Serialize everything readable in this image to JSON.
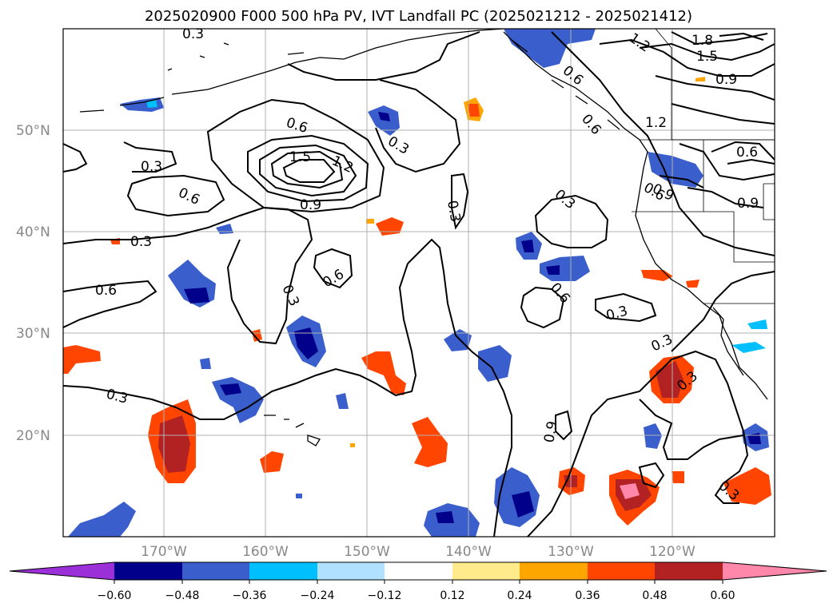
{
  "title": "2025020900 F000 500 hPa PV, IVT Landfall PC (2025021212 - 2025021412)",
  "lat_labels": [
    "50°N",
    "40°N",
    "30°N",
    "20°N"
  ],
  "lon_labels": [
    "170°W",
    "160°W",
    "150°W",
    "140°W",
    "130°W",
    "120°W"
  ],
  "contour_labels": [
    "0.3",
    "0.6",
    "1.5",
    "1.2",
    "0.9",
    "0.3",
    "0.6",
    "0.3",
    "0.3",
    "0.6",
    "0.3",
    "0.6",
    "0.3",
    "0.3",
    "0.6",
    "0.9",
    "0.3",
    "0.6",
    "0.3",
    "0.6",
    "0.3",
    "0.3",
    "0.3",
    "1.2",
    "1.8",
    "1.5",
    "0.9",
    "1.2",
    "0.6",
    "0.9",
    "0.6",
    "0.9",
    "0.3",
    "0.3"
  ],
  "colorbar": {
    "colors": [
      "#9b30d8",
      "#00008b",
      "#3a5fcd",
      "#00bfff",
      "#b0e2ff",
      "#ffffff",
      "#ffeb8c",
      "#ffa500",
      "#ff4500",
      "#b22222",
      "#ff88aa"
    ],
    "tick_labels": [
      "−0.60",
      "−0.48",
      "−0.36",
      "−0.24",
      "−0.12",
      "0.12",
      "0.24",
      "0.36",
      "0.48",
      "0.60"
    ]
  }
}
